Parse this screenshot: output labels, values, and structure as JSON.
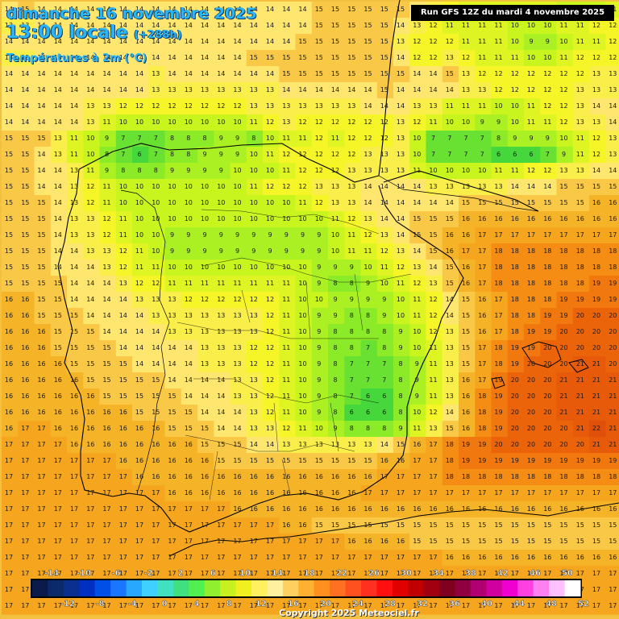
{
  "header": {
    "date": "dimanche 16 novembre 2025",
    "time": "13:00 locale",
    "offset": "(+288h)",
    "parameter": "Températures à 2m (°C)"
  },
  "run_info": "Run GFS 12Z du mardi 4 novembre 2025",
  "copyright": "Copyright 2025 Meteociel.fr",
  "legend": {
    "top_labels": [
      "-14",
      "-10",
      "-6",
      "-2",
      "2",
      "6",
      "10",
      "14",
      "18",
      "22",
      "26",
      "30",
      "34",
      "38",
      "42",
      "46",
      "50"
    ],
    "bottom_labels": [
      "-12",
      "-8",
      "-4",
      "0",
      "4",
      "8",
      "12",
      "16",
      "20",
      "24",
      "28",
      "32",
      "36",
      "40",
      "44",
      "48",
      "52"
    ],
    "colors": [
      "#0a1a4a",
      "#0a2a6a",
      "#0a2f8e",
      "#0030c0",
      "#0050e8",
      "#1976ff",
      "#29a8ff",
      "#40d0ff",
      "#40e0c0",
      "#40e080",
      "#50f050",
      "#90f030",
      "#c8f020",
      "#f0f020",
      "#fff060",
      "#fff0a0",
      "#ffd060",
      "#ffb030",
      "#ff9020",
      "#ff7020",
      "#ff5020",
      "#ff3020",
      "#ff1010",
      "#e00000",
      "#c00000",
      "#a00010",
      "#800020",
      "#900040",
      "#b00070",
      "#d000a0",
      "#f000d0",
      "#ff40e0",
      "#ff80f0",
      "#ffc0ff",
      "#ffffff"
    ]
  },
  "grid": {
    "rows": [
      "14 15 14 14 14 14 14 14 14 14 14 14 14 14 14 14 14 14 14 15 15 15 15 15 15 14 13 12 11 11 11 11 11 11 10 10 10 11",
      "13 13 14 14 14 14 14 14 14 14 14 14 14 14 14 14 14 14 14 15 15 15 15 15 14 13 12 11 11 11 11 10 10 10 11 11 12 12",
      "14 14 14 14 14 14 14 14 14 14 14 14 14 14 14 14 14 14 15 15 15 15 15 15 13 12 12 12 11 11 11 10 9 9 10 11 11 12",
      "13 13 14 14 14 14 14 14 14 14 14 14 14 14 14 15 15 15 15 15 15 15 15 15 14 12 12 13 12 11 11 11 10 10 11 12 12 12",
      "14 14 14 14 14 14 14 14 14 13 14 14 14 14 14 14 14 15 15 15 15 15 15 15 15 14 14 15 13 12 12 12 12 12 12 12 13 13",
      "14 14 14 14 14 14 14 14 14 13 13 13 13 13 13 13 13 14 14 14 14 14 14 15 14 14 14 14 13 13 12 12 12 12 12 13 13 13",
      "14 14 14 14 14 13 13 12 12 12 12 12 12 12 12 13 13 13 13 13 13 13 14 14 14 13 13 11 11 11 10 10 11 12 12 13 14 14",
      "14 14 14 14 14 13 11 10 10 10 10 10 10 10 10 11 12 13 12 12 12 12 12 12 13 12 11 10 10 9 9 10 11 11 12 13 13 14",
      "15 15 15 13 11 10 9 7 7 7 8 8 8 9 9 8 10 11 11 12 11 12 12 12 13 10 7 7 7 7 8 9 9 9 10 11 12 13",
      "15 15 14 13 11 10 8 7 6 7 8 8 9 9 9 10 11 12 12 12 12 12 13 13 13 10 7 7 7 7 6 6 6 7 9 11 12 13",
      "15 15 14 14 13 11 9 8 8 8 9 9 9 9 10 10 10 11 12 12 12 13 13 13 13 11 10 10 10 10 11 11 12 12 13 13 14 14",
      "15 15 14 14 13 12 11 10 10 10 10 10 10 10 10 11 12 12 12 13 13 13 14 14 14 14 13 13 13 13 13 14 14 14 15 15 15 15",
      "15 15 15 14 13 12 11 10 10 10 10 10 10 10 10 10 10 10 11 12 13 13 14 14 14 14 14 14 15 15 15 15 15 15 15 15 16 16",
      "15 15 15 14 13 13 12 11 10 10 10 10 10 10 10 10 10 10 10 10 11 12 13 14 14 15 15 15 16 16 16 16 16 16 16 16 16 16",
      "15 15 15 14 13 13 12 11 10 10 9 9 9 9 9 9 9 9 9 9 10 11 12 13 14 15 15 16 16 17 17 17 17 17 17 17 17 17",
      "15 15 15 14 14 13 13 12 11 10 9 9 9 9 9 9 9 9 9 9 10 11 11 12 13 14 15 16 17 17 18 18 18 18 18 18 18 18",
      "15 15 15 14 14 14 13 12 11 11 10 10 10 10 10 10 10 10 10 9 9 9 10 11 12 13 14 15 16 17 18 18 18 18 18 18 18 18",
      "15 15 15 15 14 14 14 13 12 12 11 11 11 11 11 11 11 11 10 9 8 8 9 10 11 12 13 15 16 17 18 18 18 18 18 18 19 19",
      "16 16 15 15 14 14 14 14 13 13 13 12 12 12 12 12 12 11 10 10 9 9 9 9 10 11 12 14 15 16 17 18 18 18 19 19 19 19",
      "16 16 15 15 15 14 14 14 14 13 13 13 13 13 13 13 12 11 10 9 9 8 8 9 10 11 12 14 15 16 17 18 18 19 19 20 20 20",
      "16 16 16 15 15 15 14 14 14 14 13 13 13 13 13 13 12 11 10 9 8 8 8 8 9 10 12 13 15 16 17 18 19 19 20 20 20 20",
      "16 16 16 15 15 15 15 14 14 14 14 14 13 13 13 12 12 11 10 9 8 8 7 8 9 10 11 13 15 17 18 19 19 20 20 20 20 20",
      "16 16 16 16 15 15 15 15 14 14 14 14 13 13 13 12 12 11 10 9 8 7 7 7 8 9 11 13 15 17 18 19 20 20 20 21 21 20",
      "16 16 16 16 16 15 15 15 15 15 14 14 14 14 13 13 12 11 10 9 8 7 7 7 8 9 11 13 16 17 19 20 20 20 21 21 21 21",
      "16 16 16 16 16 16 15 15 15 15 15 14 14 14 13 13 12 11 10 9 8 7 6 6 8 9 11 13 16 18 19 20 20 20 21 21 21 21",
      "16 16 16 16 16 16 16 16 15 15 15 15 14 14 14 13 12 11 10 9 8 6 6 6 8 10 12 14 16 18 19 20 20 20 21 21 21 21",
      "16 17 17 16 16 16 16 16 16 16 15 15 15 14 14 13 13 12 11 10 9 8 8 8 9 11 13 15 16 18 19 20 20 20 20 21 22 21",
      "17 17 17 17 16 16 16 16 16 16 16 16 15 15 15 14 14 13 13 13 13 13 13 14 15 16 17 18 19 19 20 20 20 20 20 20 21 21",
      "17 17 17 17 17 17 17 16 16 16 16 16 16 15 15 15 15 15 15 15 15 15 15 16 16 17 17 18 19 19 19 19 19 19 19 19 19 19",
      "17 17 17 17 17 17 17 17 16 16 16 16 16 16 16 16 16 16 16 16 16 16 16 17 17 17 17 18 18 18 18 18 18 18 18 18 18 18",
      "17 17 17 17 17 17 17 17 17 17 16 16 16 16 16 16 16 16 16 16 16 16 17 17 17 17 17 17 17 17 17 17 17 17 17 17 17 17",
      "17 17 17 17 17 17 17 17 17 17 17 17 17 17 16 16 16 16 16 16 16 16 16 16 16 16 16 16 16 16 16 16 16 16 16 16 16 16",
      "17 17 17 17 17 17 17 17 17 17 17 17 17 17 17 17 17 16 16 15 15 15 15 15 15 15 15 15 15 15 15 15 15 15 15 15 15 15",
      "17 17 17 17 17 17 17 17 17 17 17 17 17 17 17 17 17 17 17 17 17 16 16 16 16 15 15 15 15 15 15 15 15 15 15 15 15 15",
      "17 17 17 17 17 17 17 17 17 17 17 17 17 17 17 17 17 17 17 17 17 17 17 17 17 17 17 16 16 16 16 16 16 16 16 16 16 16",
      "17 17 17 17 17 17 17 17 17 17 17 17 17 17 17 17 17 17 17 17 17 17 17 17 17 17 17 17 17 17 17 17 17 17 17 17 17 17",
      "17 17 17 17 17 17 17 17 17 17 17 17 17 17 17 17 17 17 17 17 17 17 17 17 17 17 17 17 17 17 17 17 17 17 17 17 17 17",
      "17 17 17 17 17 17 17 17 17 17 17 17 17 17 17 17 17 17 17 17 17 17 17 17 17 17 17 17 17 17 17 17 17 17 17 17 17 17"
    ]
  }
}
